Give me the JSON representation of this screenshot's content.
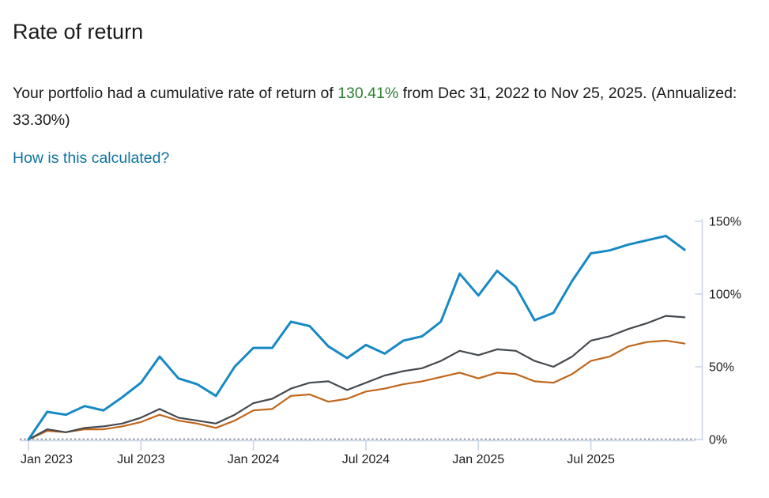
{
  "header": {
    "title": "Rate of return"
  },
  "summary": {
    "before_highlight": "Your portfolio had a cumulative rate of return of ",
    "highlight": "130.41%",
    "after_highlight": " from Dec 31, 2022 to Nov 25, 2025. (Annualized: 33.30%)",
    "highlight_color": "#2e8133",
    "link_label": "How is this calculated?",
    "link_color": "#0f74a0"
  },
  "chart_data": {
    "type": "line",
    "title": "",
    "xlabel": "",
    "ylabel": "",
    "legend": "none",
    "y_axis_side": "right",
    "ylim": [
      0,
      150
    ],
    "y_ticks": [
      "0%",
      "50%",
      "100%",
      "150%"
    ],
    "y_tick_values": [
      0,
      50,
      100,
      150
    ],
    "x_tick_labels": [
      "Jan 2023",
      "Jul 2023",
      "Jan 2024",
      "Jul 2024",
      "Jan 2025",
      "Jul 2025"
    ],
    "x_tick_month_index": [
      0,
      6,
      12,
      18,
      24,
      30
    ],
    "x_months": [
      "Dec 2022",
      "Jan 2023",
      "Feb 2023",
      "Mar 2023",
      "Apr 2023",
      "May 2023",
      "Jun 2023",
      "Jul 2023",
      "Aug 2023",
      "Sep 2023",
      "Oct 2023",
      "Nov 2023",
      "Dec 2023",
      "Jan 2024",
      "Feb 2024",
      "Mar 2024",
      "Apr 2024",
      "May 2024",
      "Jun 2024",
      "Jul 2024",
      "Aug 2024",
      "Sep 2024",
      "Oct 2024",
      "Nov 2024",
      "Dec 2024",
      "Jan 2025",
      "Feb 2025",
      "Mar 2025",
      "Apr 2025",
      "May 2025",
      "Jun 2025",
      "Jul 2025",
      "Aug 2025",
      "Sep 2025",
      "Oct 2025",
      "Nov 25 2025"
    ],
    "axis_color": "#c9d2e6",
    "baseline_dash_color": "#7a8290",
    "series": [
      {
        "name": "portfolio",
        "color": "#1689c5",
        "values": [
          0,
          19,
          17,
          23,
          20,
          29,
          39,
          57,
          42,
          38,
          30,
          50,
          63,
          63,
          81,
          78,
          64,
          56,
          65,
          59,
          68,
          71,
          81,
          114,
          99,
          116,
          105,
          82,
          87,
          109,
          128,
          130,
          134,
          137,
          140,
          130.41
        ]
      },
      {
        "name": "benchmark-gray",
        "color": "#454a50",
        "values": [
          0,
          7,
          5,
          8,
          9,
          11,
          15,
          21,
          15,
          13,
          11,
          17,
          25,
          28,
          35,
          39,
          40,
          34,
          39,
          44,
          47,
          49,
          54,
          61,
          58,
          62,
          61,
          54,
          50,
          57,
          68,
          71,
          76,
          80,
          85,
          84
        ]
      },
      {
        "name": "benchmark-orange",
        "color": "#c0661b",
        "values": [
          0,
          6,
          5,
          7,
          7,
          9,
          12,
          17,
          13,
          11,
          8,
          13,
          20,
          21,
          30,
          31,
          26,
          28,
          33,
          35,
          38,
          40,
          43,
          46,
          42,
          46,
          45,
          40,
          39,
          45,
          54,
          57,
          64,
          67,
          68,
          66
        ]
      }
    ]
  }
}
